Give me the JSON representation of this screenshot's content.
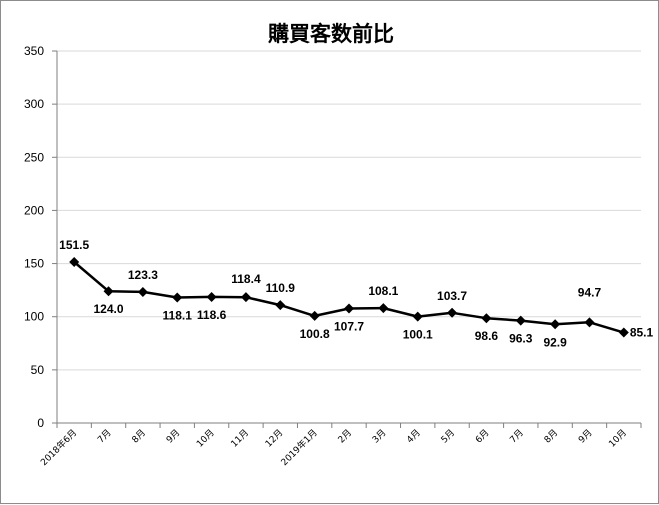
{
  "chart_data": {
    "type": "line",
    "title": "購買客数前比",
    "xlabel": "",
    "ylabel": "",
    "ylim": [
      0,
      350
    ],
    "yticks": [
      "0",
      "50",
      "100",
      "150",
      "200",
      "250",
      "300",
      "350"
    ],
    "grid": true,
    "legend": "none",
    "categories": [
      "2018年6月",
      "7月",
      "8月",
      "9月",
      "10月",
      "11月",
      "12月",
      "2019年1月",
      "2月",
      "3月",
      "4月",
      "5月",
      "6月",
      "7月",
      "8月",
      "9月",
      "10月"
    ],
    "series": [
      {
        "values": [
          151.5,
          124.0,
          123.3,
          118.1,
          118.6,
          118.4,
          110.9,
          100.8,
          107.7,
          108.1,
          100.1,
          103.7,
          98.6,
          96.3,
          92.9,
          94.7,
          85.1
        ],
        "labels": [
          "151.5",
          "124.0",
          "123.3",
          "118.1",
          "118.6",
          "118.4",
          "110.9",
          "100.8",
          "107.7",
          "108.1",
          "100.1",
          "103.7",
          "98.6",
          "96.3",
          "92.9",
          "94.7",
          "85.1"
        ],
        "color": "#000000"
      }
    ]
  }
}
